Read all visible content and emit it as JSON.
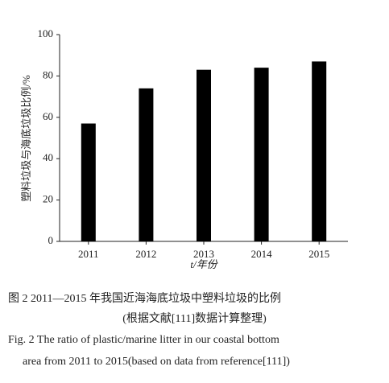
{
  "chart_data": {
    "type": "bar",
    "ylabel": "塑料垃圾与海底垃圾比例/%",
    "xlabel": "t/年份",
    "categories": [
      "2011",
      "2012",
      "2013",
      "2014",
      "2015"
    ],
    "values": [
      57,
      74,
      83,
      84,
      87
    ],
    "color": "#000000",
    "ylim": [
      0,
      100
    ],
    "yticks": [
      0,
      20,
      40,
      60,
      80,
      100
    ],
    "grid": false,
    "caption": [
      "图 2   2011—2015 年我国近海海底垃圾中塑料垃圾的比例",
      "(根据文献[111]数据计算整理)",
      "Fig. 2   The ratio of plastic/marine litter in our coastal bottom",
      "area from 2011 to 2015(based on data from reference[111])"
    ]
  }
}
